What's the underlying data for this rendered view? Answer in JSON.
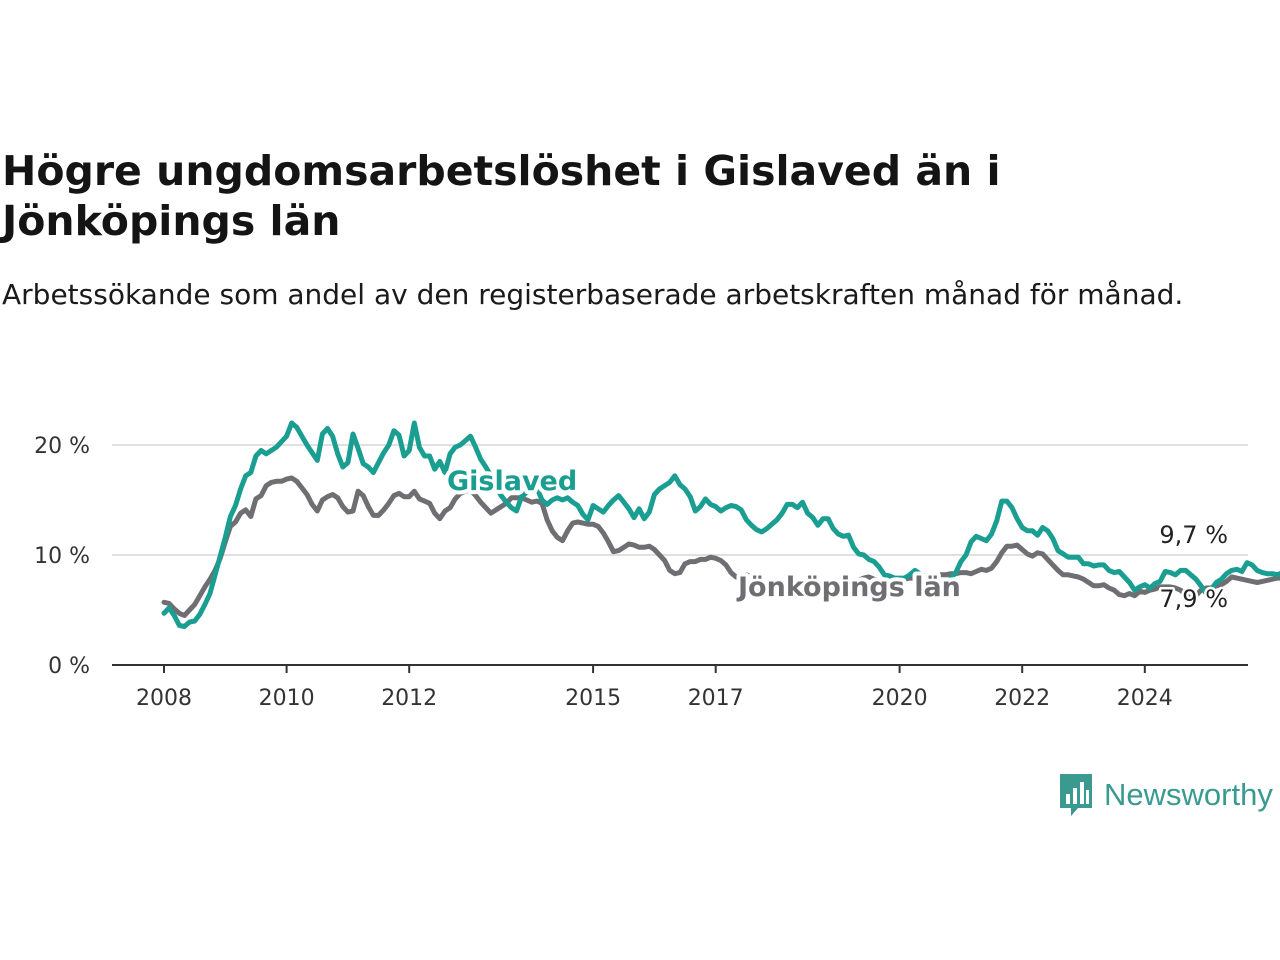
{
  "brand": {
    "name": "Newsworthy",
    "color": "#3a9a8f"
  },
  "chart_data": {
    "type": "line",
    "title": "Högre ungdomsarbetslöshet i Gislaved än i Jönköpings län",
    "subtitle": "Arbetssökande som andel av den registerbaserade arbetskraften månad för månad.",
    "xlabel": "",
    "ylabel": "",
    "x_start": "2008-01",
    "x_frequency": "monthly",
    "x_ticks": [
      "2008",
      "2010",
      "2012",
      "2015",
      "2017",
      "2020",
      "2022",
      "2024"
    ],
    "y_ticks": [
      "0 %",
      "10 %",
      "20 %"
    ],
    "ylim": [
      0,
      22
    ],
    "grid": "horizontal",
    "legend": "direct labels on lines",
    "series": [
      {
        "name": "Gislaved",
        "color": "#1a9e91",
        "end_label": "9,7 %",
        "values": [
          4.7,
          5.2,
          4.5,
          3.6,
          3.5,
          3.9,
          4.0,
          4.6,
          5.5,
          6.5,
          8.2,
          9.9,
          11.6,
          13.5,
          14.5,
          16.0,
          17.2,
          17.5,
          19.0,
          19.5,
          19.2,
          19.5,
          19.8,
          20.3,
          20.8,
          22.0,
          21.6,
          20.8,
          20.0,
          19.3,
          18.6,
          21.0,
          21.5,
          20.8,
          19.2,
          18.0,
          18.4,
          21.0,
          19.7,
          18.3,
          18.0,
          17.5,
          18.4,
          19.3,
          20.0,
          21.3,
          20.9,
          19.0,
          19.5,
          22.0,
          19.8,
          19.0,
          19.0,
          17.8,
          18.5,
          17.5,
          19.2,
          19.8,
          20.0,
          20.4,
          20.8,
          19.8,
          18.7,
          18.0,
          17.2,
          16.3,
          15.4,
          14.8,
          14.3,
          14.0,
          15.3,
          15.7,
          16.0,
          16.1,
          15.0,
          14.6,
          15.0,
          15.2,
          15.0,
          15.2,
          14.8,
          14.5,
          13.7,
          13.2,
          14.5,
          14.2,
          13.9,
          14.5,
          15.0,
          15.4,
          14.8,
          14.2,
          13.4,
          14.2,
          13.3,
          13.9,
          15.5,
          16.0,
          16.3,
          16.6,
          17.2,
          16.4,
          16.0,
          15.3,
          14.0,
          14.4,
          15.1,
          14.6,
          14.4,
          14.0,
          14.3,
          14.5,
          14.4,
          14.1,
          13.2,
          12.7,
          12.3,
          12.1,
          12.4,
          12.8,
          13.2,
          13.8,
          14.6,
          14.6,
          14.3,
          14.8,
          13.8,
          13.4,
          12.7,
          13.3,
          13.3,
          12.4,
          11.9,
          11.7,
          11.8,
          10.7,
          10.1,
          10.0,
          9.6,
          9.4,
          8.9,
          8.2,
          8.1,
          7.9,
          7.9,
          7.9,
          8.2,
          8.6,
          8.3,
          8.1,
          8.1,
          7.9,
          7.5,
          7.6,
          7.9,
          8.4,
          9.4,
          10.0,
          11.2,
          11.7,
          11.5,
          11.3,
          11.9,
          13.1,
          14.9,
          14.9,
          14.3,
          13.3,
          12.5,
          12.2,
          12.2,
          11.8,
          12.5,
          12.2,
          11.5,
          10.4,
          10.1,
          9.8,
          9.8,
          9.8,
          9.2,
          9.2,
          9.0,
          9.1,
          9.1,
          8.6,
          8.4,
          8.5,
          8.0,
          7.5,
          6.8,
          7.1,
          7.3,
          7.0,
          7.4,
          7.6,
          8.5,
          8.4,
          8.2,
          8.6,
          8.6,
          8.2,
          7.8,
          7.2,
          6.5,
          6.9,
          7.5,
          7.8,
          8.3,
          8.6,
          8.7,
          8.5,
          9.3,
          9.1,
          8.6,
          8.4,
          8.3,
          8.3,
          8.2,
          8.4,
          8.2,
          8.3,
          9.7
        ]
      },
      {
        "name": "Jönköpings län",
        "color": "#6f6f73",
        "end_label": "7,9 %",
        "values": [
          5.7,
          5.6,
          5.1,
          4.7,
          4.5,
          5.0,
          5.5,
          6.3,
          7.1,
          7.8,
          8.6,
          9.7,
          11.2,
          12.6,
          13.0,
          13.8,
          14.1,
          13.5,
          15.1,
          15.4,
          16.3,
          16.6,
          16.7,
          16.7,
          16.9,
          17.0,
          16.7,
          16.1,
          15.5,
          14.6,
          14.0,
          15.0,
          15.3,
          15.5,
          15.2,
          14.4,
          13.9,
          14.0,
          15.8,
          15.4,
          14.4,
          13.6,
          13.6,
          14.1,
          14.7,
          15.4,
          15.6,
          15.3,
          15.3,
          15.8,
          15.1,
          14.9,
          14.7,
          13.8,
          13.3,
          14.0,
          14.3,
          15.1,
          15.6,
          15.8,
          15.9,
          15.4,
          14.8,
          14.3,
          13.8,
          14.1,
          14.4,
          14.7,
          15.2,
          15.2,
          15.2,
          15.0,
          14.8,
          14.9,
          14.7,
          13.2,
          12.2,
          11.6,
          11.3,
          12.2,
          12.9,
          13.0,
          12.9,
          12.8,
          12.8,
          12.6,
          12.0,
          11.2,
          10.3,
          10.4,
          10.7,
          11.0,
          10.9,
          10.7,
          10.7,
          10.8,
          10.5,
          10.0,
          9.5,
          8.6,
          8.3,
          8.4,
          9.2,
          9.4,
          9.4,
          9.6,
          9.6,
          9.8,
          9.7,
          9.5,
          9.1,
          8.4,
          8.0,
          7.8,
          8.2,
          8.0,
          7.7,
          7.3,
          7.2,
          7.1,
          7.1,
          7.2,
          7.3,
          7.3,
          7.2,
          7.5,
          7.2,
          7.2,
          7.4,
          7.5,
          7.5,
          7.2,
          7.3,
          7.3,
          7.4,
          7.6,
          7.7,
          7.9,
          8.0,
          7.8,
          7.7,
          7.6,
          7.5,
          7.6,
          7.7,
          7.8,
          7.9,
          7.9,
          8.0,
          8.0,
          8.1,
          8.1,
          8.2,
          8.2,
          8.3,
          8.3,
          8.4,
          8.4,
          8.3,
          8.5,
          8.7,
          8.6,
          8.8,
          9.4,
          10.2,
          10.8,
          10.8,
          10.9,
          10.5,
          10.1,
          9.9,
          10.2,
          10.1,
          9.6,
          9.1,
          8.6,
          8.2,
          8.2,
          8.1,
          8.0,
          7.8,
          7.5,
          7.2,
          7.2,
          7.3,
          7.0,
          6.8,
          6.4,
          6.3,
          6.5,
          6.3,
          6.7,
          6.6,
          6.8,
          6.9,
          7.1,
          7.1,
          7.1,
          7.0,
          6.8,
          6.4,
          6.0,
          6.3,
          6.8,
          7.0,
          7.0,
          7.2,
          7.3,
          7.6,
          8.0,
          7.9,
          7.8,
          7.7,
          7.6,
          7.5,
          7.6,
          7.7,
          7.8,
          7.9,
          7.9,
          7.9
        ]
      }
    ]
  }
}
